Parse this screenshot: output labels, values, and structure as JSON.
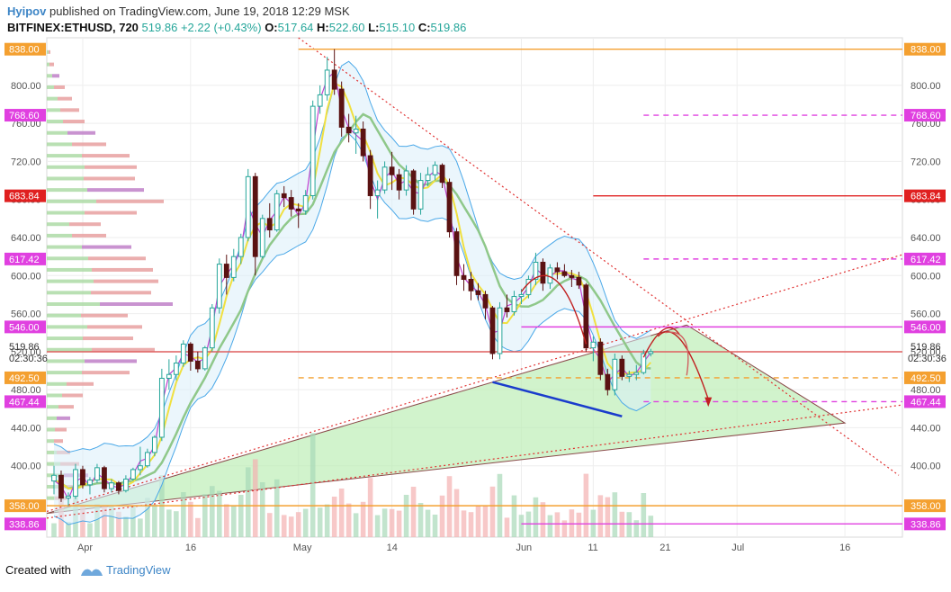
{
  "header": {
    "author": "Hyipov",
    "published_text": "published on TradingView.com, June 19, 2018 12:29 MSK",
    "symbol": "BITFINEX:ETHUSD, 720",
    "last": "519.86",
    "change": "+2.22 (+0.43%)",
    "o_label": "O:",
    "o_value": "517.64",
    "h_label": "H:",
    "h_value": "522.60",
    "l_label": "L:",
    "l_value": "515.10",
    "c_label": "C:",
    "c_value": "519.86"
  },
  "footer": {
    "created_with": "Created with",
    "brand": "TradingView"
  },
  "chart_data": {
    "type": "candlestick",
    "ylim": [
      325,
      850
    ],
    "y_ticks": [
      "400.00",
      "440.00",
      "480.00",
      "520.00",
      "560.00",
      "600.00",
      "640.00",
      "680.00",
      "720.00",
      "760.00",
      "800.00"
    ],
    "x_ticks": [
      {
        "label": "Apr",
        "date": "2018-04-01"
      },
      {
        "label": "16",
        "date": "2018-04-16"
      },
      {
        "label": "May",
        "date": "2018-05-01"
      },
      {
        "label": "14",
        "date": "2018-05-14"
      },
      {
        "label": "Jun",
        "date": "2018-06-01"
      },
      {
        "label": "11",
        "date": "2018-06-11"
      },
      {
        "label": "21",
        "date": "2018-06-21"
      },
      {
        "label": "Jul",
        "date": "2018-07-01"
      },
      {
        "label": "16",
        "date": "2018-07-16"
      }
    ],
    "x_range": [
      "2018-03-27",
      "2018-07-24"
    ],
    "level_lines": [
      {
        "value": 838.0,
        "label": "838.00",
        "color": "#f4a030",
        "style": "solid",
        "from": "2018-05-01"
      },
      {
        "value": 768.6,
        "label": "768.60",
        "color": "#e040e0",
        "style": "dashed",
        "from": "2018-06-18"
      },
      {
        "value": 683.84,
        "label": "683.84",
        "color": "#e02020",
        "style": "solid",
        "from": "2018-06-11"
      },
      {
        "value": 617.42,
        "label": "617.42",
        "color": "#e040e0",
        "style": "dashed",
        "from": "2018-06-18"
      },
      {
        "value": 546.0,
        "label": "546.00",
        "color": "#e040e0",
        "style": "solid",
        "from": "2018-06-01"
      },
      {
        "value": 519.86,
        "label": "519.86",
        "color": "#e06060",
        "style": "solid",
        "from": "2018-03-27"
      },
      {
        "value": 492.5,
        "label": "492.50",
        "color": "#f4a030",
        "style": "dashed",
        "from": "2018-05-01"
      },
      {
        "value": 467.44,
        "label": "467.44",
        "color": "#e040e0",
        "style": "dashed",
        "from": "2018-06-18"
      },
      {
        "value": 358.0,
        "label": "358.00",
        "color": "#f4a030",
        "style": "solid",
        "from": "2018-03-27"
      },
      {
        "value": 338.86,
        "label": "338.86",
        "color": "#e040e0",
        "style": "solid",
        "from": "2018-06-01"
      }
    ],
    "left_labels": [
      {
        "value": 838.0,
        "label": "838.00",
        "color": "#f4a030"
      },
      {
        "value": 768.6,
        "label": "768.60",
        "color": "#e040e0"
      },
      {
        "value": 683.84,
        "label": "683.84",
        "color": "#e02020"
      },
      {
        "value": 617.42,
        "label": "617.42",
        "color": "#e040e0"
      },
      {
        "value": 546.0,
        "label": "546.00",
        "color": "#e040e0"
      },
      {
        "value": 492.5,
        "label": "492.50",
        "color": "#f4a030"
      },
      {
        "value": 467.44,
        "label": "467.44",
        "color": "#e040e0"
      },
      {
        "value": 358.0,
        "label": "358.00",
        "color": "#f4a030"
      },
      {
        "value": 338.86,
        "label": "338.86",
        "color": "#e040e0"
      }
    ],
    "price_marker": {
      "value": 519.86,
      "label": "519.86",
      "countdown": "02:30:36"
    },
    "countdown_left": "02:30:36",
    "candles": [
      [
        "2018-03-28",
        384,
        400,
        370,
        390
      ],
      [
        "2018-03-29",
        390,
        395,
        362,
        366
      ],
      [
        "2018-03-30",
        366,
        372,
        358,
        368
      ],
      [
        "2018-03-31",
        368,
        402,
        365,
        396
      ],
      [
        "2018-04-01",
        396,
        400,
        376,
        380
      ],
      [
        "2018-04-02",
        380,
        388,
        370,
        385
      ],
      [
        "2018-04-03",
        385,
        402,
        382,
        398
      ],
      [
        "2018-04-04",
        398,
        400,
        372,
        376
      ],
      [
        "2018-04-05",
        376,
        386,
        372,
        382
      ],
      [
        "2018-04-06",
        382,
        384,
        370,
        374
      ],
      [
        "2018-04-07",
        374,
        390,
        372,
        386
      ],
      [
        "2018-04-08",
        386,
        398,
        384,
        396
      ],
      [
        "2018-04-09",
        396,
        420,
        390,
        400
      ],
      [
        "2018-04-10",
        400,
        418,
        398,
        414
      ],
      [
        "2018-04-11",
        414,
        432,
        410,
        430
      ],
      [
        "2018-04-12",
        430,
        502,
        426,
        492
      ],
      [
        "2018-04-13",
        492,
        512,
        480,
        496
      ],
      [
        "2018-04-14",
        496,
        516,
        490,
        508
      ],
      [
        "2018-04-15",
        508,
        532,
        504,
        528
      ],
      [
        "2018-04-16",
        528,
        530,
        500,
        510
      ],
      [
        "2018-04-17",
        510,
        520,
        498,
        502
      ],
      [
        "2018-04-18",
        502,
        526,
        500,
        524
      ],
      [
        "2018-04-19",
        524,
        570,
        520,
        566
      ],
      [
        "2018-04-20",
        566,
        618,
        560,
        612
      ],
      [
        "2018-04-21",
        612,
        622,
        580,
        598
      ],
      [
        "2018-04-22",
        598,
        628,
        594,
        620
      ],
      [
        "2018-04-23",
        620,
        644,
        612,
        640
      ],
      [
        "2018-04-24",
        640,
        712,
        636,
        704
      ],
      [
        "2018-04-25",
        704,
        708,
        600,
        620
      ],
      [
        "2018-04-26",
        620,
        664,
        618,
        660
      ],
      [
        "2018-04-27",
        660,
        676,
        640,
        648
      ],
      [
        "2018-04-28",
        648,
        690,
        646,
        686
      ],
      [
        "2018-04-29",
        686,
        694,
        672,
        682
      ],
      [
        "2018-04-30",
        682,
        690,
        662,
        670
      ],
      [
        "2018-05-01",
        670,
        676,
        650,
        668
      ],
      [
        "2018-05-02",
        668,
        690,
        664,
        684
      ],
      [
        "2018-05-03",
        684,
        784,
        680,
        778
      ],
      [
        "2018-05-04",
        778,
        800,
        770,
        790
      ],
      [
        "2018-05-05",
        790,
        830,
        784,
        816
      ],
      [
        "2018-05-06",
        816,
        838,
        790,
        796
      ],
      [
        "2018-05-07",
        796,
        804,
        746,
        756
      ],
      [
        "2018-05-08",
        756,
        770,
        740,
        750
      ],
      [
        "2018-05-09",
        750,
        768,
        728,
        754
      ],
      [
        "2018-05-10",
        754,
        762,
        720,
        726
      ],
      [
        "2018-05-11",
        726,
        732,
        670,
        684
      ],
      [
        "2018-05-12",
        684,
        700,
        660,
        690
      ],
      [
        "2018-05-13",
        690,
        720,
        686,
        714
      ],
      [
        "2018-05-14",
        714,
        730,
        690,
        706
      ],
      [
        "2018-05-15",
        706,
        712,
        680,
        690
      ],
      [
        "2018-05-16",
        690,
        716,
        684,
        710
      ],
      [
        "2018-05-17",
        710,
        712,
        664,
        670
      ],
      [
        "2018-05-18",
        670,
        708,
        664,
        700
      ],
      [
        "2018-05-19",
        700,
        714,
        694,
        706
      ],
      [
        "2018-05-20",
        706,
        720,
        700,
        716
      ],
      [
        "2018-05-21",
        716,
        718,
        692,
        698
      ],
      [
        "2018-05-22",
        698,
        702,
        640,
        646
      ],
      [
        "2018-05-23",
        646,
        650,
        590,
        600
      ],
      [
        "2018-05-24",
        600,
        612,
        584,
        596
      ],
      [
        "2018-05-25",
        596,
        604,
        574,
        584
      ],
      [
        "2018-05-26",
        584,
        592,
        574,
        580
      ],
      [
        "2018-05-27",
        580,
        584,
        554,
        566
      ],
      [
        "2018-05-28",
        566,
        568,
        512,
        518
      ],
      [
        "2018-05-29",
        518,
        572,
        512,
        566
      ],
      [
        "2018-05-30",
        566,
        580,
        556,
        562
      ],
      [
        "2018-05-31",
        562,
        584,
        558,
        578
      ],
      [
        "2018-06-01",
        578,
        586,
        570,
        580
      ],
      [
        "2018-06-02",
        580,
        600,
        576,
        596
      ],
      [
        "2018-06-03",
        596,
        624,
        590,
        614
      ],
      [
        "2018-06-04",
        614,
        618,
        584,
        592
      ],
      [
        "2018-06-05",
        592,
        612,
        586,
        608
      ],
      [
        "2018-06-06",
        608,
        614,
        596,
        604
      ],
      [
        "2018-06-07",
        604,
        612,
        598,
        600
      ],
      [
        "2018-06-08",
        600,
        606,
        588,
        598
      ],
      [
        "2018-06-09",
        598,
        604,
        586,
        590
      ],
      [
        "2018-06-10",
        590,
        592,
        520,
        524
      ],
      [
        "2018-06-11",
        524,
        536,
        510,
        530
      ],
      [
        "2018-06-12",
        530,
        534,
        490,
        496
      ],
      [
        "2018-06-13",
        496,
        502,
        474,
        480
      ],
      [
        "2018-06-14",
        480,
        518,
        474,
        512
      ],
      [
        "2018-06-15",
        512,
        516,
        490,
        494
      ],
      [
        "2018-06-16",
        494,
        500,
        488,
        496
      ],
      [
        "2018-06-17",
        496,
        506,
        490,
        498
      ],
      [
        "2018-06-18",
        498,
        522,
        496,
        518
      ],
      [
        "2018-06-19",
        518,
        523,
        515,
        520
      ]
    ],
    "volume_profile": [
      {
        "price": 835,
        "len": 4
      },
      {
        "price": 822,
        "len": 8
      },
      {
        "price": 810,
        "len": 14
      },
      {
        "price": 798,
        "len": 20
      },
      {
        "price": 786,
        "len": 28
      },
      {
        "price": 774,
        "len": 36
      },
      {
        "price": 762,
        "len": 42
      },
      {
        "price": 750,
        "len": 54
      },
      {
        "price": 738,
        "len": 66
      },
      {
        "price": 726,
        "len": 92
      },
      {
        "price": 714,
        "len": 100
      },
      {
        "price": 702,
        "len": 98
      },
      {
        "price": 690,
        "len": 108
      },
      {
        "price": 678,
        "len": 130
      },
      {
        "price": 666,
        "len": 100
      },
      {
        "price": 654,
        "len": 60
      },
      {
        "price": 642,
        "len": 66
      },
      {
        "price": 630,
        "len": 94
      },
      {
        "price": 618,
        "len": 110
      },
      {
        "price": 606,
        "len": 118
      },
      {
        "price": 594,
        "len": 124
      },
      {
        "price": 582,
        "len": 116
      },
      {
        "price": 570,
        "len": 140
      },
      {
        "price": 558,
        "len": 90
      },
      {
        "price": 546,
        "len": 106
      },
      {
        "price": 534,
        "len": 96
      },
      {
        "price": 522,
        "len": 120
      },
      {
        "price": 510,
        "len": 100
      },
      {
        "price": 498,
        "len": 92
      },
      {
        "price": 486,
        "len": 52
      },
      {
        "price": 474,
        "len": 40
      },
      {
        "price": 462,
        "len": 30
      },
      {
        "price": 450,
        "len": 26
      },
      {
        "price": 438,
        "len": 22
      },
      {
        "price": 426,
        "len": 18
      },
      {
        "price": 414,
        "len": 26
      },
      {
        "price": 402,
        "len": 36
      },
      {
        "price": 390,
        "len": 46
      },
      {
        "price": 378,
        "len": 38
      },
      {
        "price": 366,
        "len": 22
      }
    ]
  }
}
